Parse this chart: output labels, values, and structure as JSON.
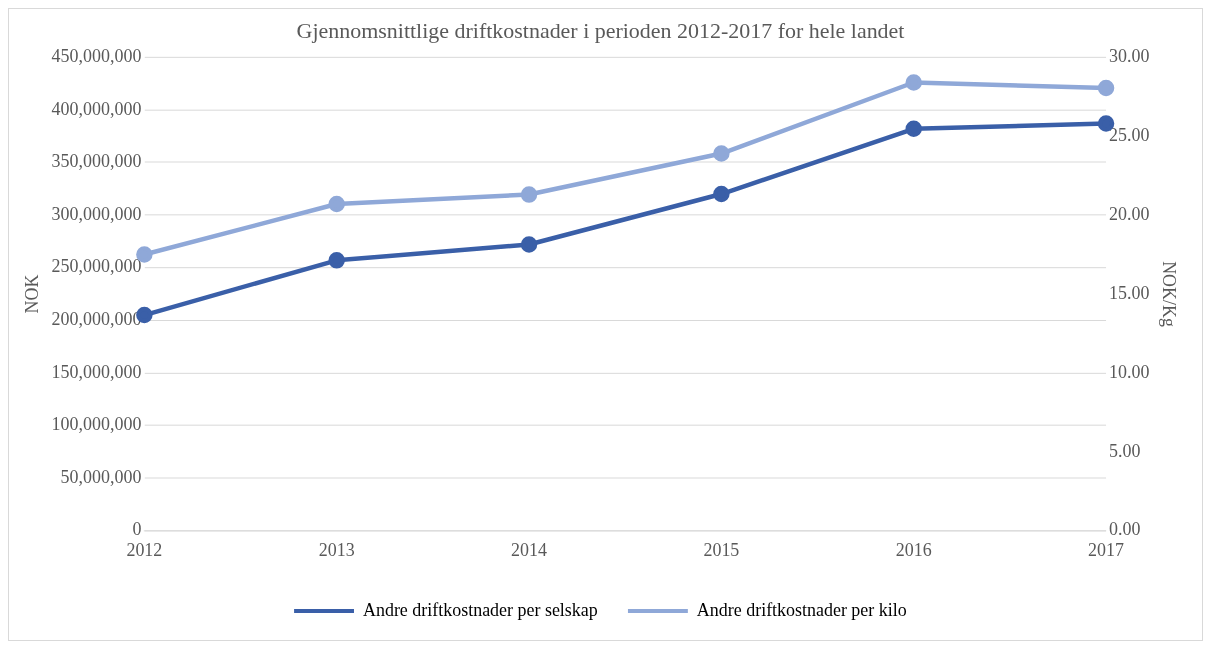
{
  "chart_data": {
    "type": "line",
    "title": "Gjennomsnittlige driftkostnader i perioden 2012-2017 for hele landet",
    "ylabel": "NOK",
    "y2label": "NOK/Kg",
    "categories": [
      "2012",
      "2013",
      "2014",
      "2015",
      "2016",
      "2017"
    ],
    "series": [
      {
        "name": "Andre driftkostnader per selskap",
        "color": "#3a5fa8",
        "values": [
          205000000,
          257000000,
          272000000,
          320000000,
          382000000,
          387000000
        ]
      },
      {
        "name": "Andre driftkostnader per kilo",
        "color": "#8fa8d8",
        "axis": "y2",
        "values": [
          17.5,
          20.7,
          21.3,
          23.9,
          28.4,
          28.05
        ]
      }
    ],
    "ylim": [
      0,
      450000000
    ],
    "yticks": [
      {
        "value": 0,
        "label": "0"
      },
      {
        "value": 50000000,
        "label": "50,000,000"
      },
      {
        "value": 100000000,
        "label": "100,000,000"
      },
      {
        "value": 150000000,
        "label": "150,000,000"
      },
      {
        "value": 200000000,
        "label": "200,000,000"
      },
      {
        "value": 250000000,
        "label": "250,000,000"
      },
      {
        "value": 300000000,
        "label": "300,000,000"
      },
      {
        "value": 350000000,
        "label": "350,000,000"
      },
      {
        "value": 400000000,
        "label": "400,000,000"
      },
      {
        "value": 450000000,
        "label": "450,000,000"
      }
    ],
    "y2lim": [
      0,
      30
    ],
    "y2ticks": [
      {
        "value": 0,
        "label": "0.00"
      },
      {
        "value": 5,
        "label": "5.00"
      },
      {
        "value": 10,
        "label": "10.00"
      },
      {
        "value": 15,
        "label": "15.00"
      },
      {
        "value": 20,
        "label": "20.00"
      },
      {
        "value": 25,
        "label": "25.00"
      },
      {
        "value": 30,
        "label": "30.00"
      }
    ],
    "grid": "y",
    "legend": "bottom",
    "marker": "circle",
    "line_style": "solid"
  }
}
